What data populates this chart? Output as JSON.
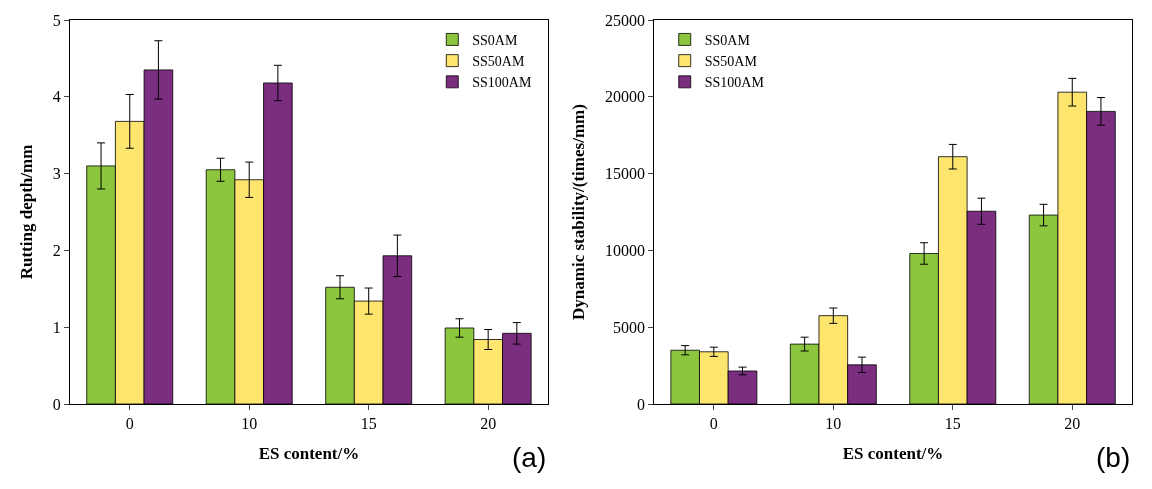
{
  "chart_data": [
    {
      "type": "bar",
      "xlabel": "ES content/%",
      "ylabel": "Rutting depth/mm",
      "categories": [
        "0",
        "10",
        "15",
        "20"
      ],
      "ylim": [
        0,
        5
      ],
      "yticks": [
        0,
        1,
        2,
        3,
        4,
        5
      ],
      "legend": "top right",
      "annotations": [
        "(a)"
      ],
      "series": [
        {
          "name": "SS0AM",
          "color": "#8cc63f",
          "values": [
            3.1,
            3.05,
            1.52,
            0.99
          ],
          "errors": [
            0.3,
            0.15,
            0.15,
            0.12
          ]
        },
        {
          "name": "SS50AM",
          "color": "#fde56e",
          "values": [
            3.68,
            2.92,
            1.34,
            0.84
          ],
          "errors": [
            0.35,
            0.23,
            0.17,
            0.13
          ]
        },
        {
          "name": "SS100AM",
          "color": "#7b2d7f",
          "values": [
            4.35,
            4.18,
            1.93,
            0.92
          ],
          "errors": [
            0.38,
            0.23,
            0.27,
            0.14
          ]
        }
      ]
    },
    {
      "type": "bar",
      "xlabel": "ES content/%",
      "ylabel": "Dynamic stability/(times/mm)",
      "categories": [
        "0",
        "10",
        "15",
        "20"
      ],
      "ylim": [
        0,
        25000
      ],
      "yticks": [
        0,
        5000,
        10000,
        15000,
        20000,
        25000
      ],
      "legend": "top left",
      "annotations": [
        "(b)"
      ],
      "series": [
        {
          "name": "SS0AM",
          "color": "#8cc63f",
          "values": [
            3500,
            3900,
            9800,
            12300
          ],
          "errors": [
            300,
            450,
            700,
            700
          ]
        },
        {
          "name": "SS50AM",
          "color": "#fde56e",
          "values": [
            3400,
            5750,
            16100,
            20300
          ],
          "errors": [
            300,
            500,
            800,
            900
          ]
        },
        {
          "name": "SS100AM",
          "color": "#7b2d7f",
          "values": [
            2150,
            2550,
            12550,
            19050
          ],
          "errors": [
            250,
            500,
            850,
            900
          ]
        }
      ]
    }
  ]
}
